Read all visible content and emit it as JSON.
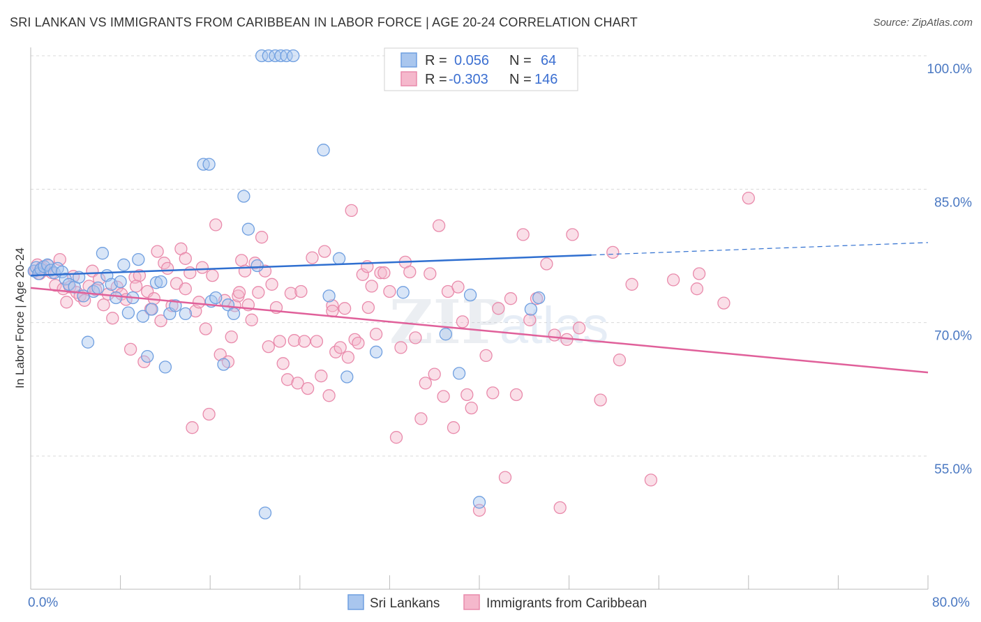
{
  "title": "SRI LANKAN VS IMMIGRANTS FROM CARIBBEAN IN LABOR FORCE | AGE 20-24 CORRELATION CHART",
  "source": "Source: ZipAtlas.com",
  "watermark": {
    "zip": "ZIP",
    "atlas": "atlas"
  },
  "colors": {
    "blue_fill": "#a9c6ee",
    "blue_stroke": "#6f9fe0",
    "blue_line": "#2f6fd0",
    "pink_fill": "#f5b8cc",
    "pink_stroke": "#e98aab",
    "pink_line": "#e0609a",
    "tick_label": "#4a78c2",
    "grid": "#d9d9d9"
  },
  "legend": {
    "rows": [
      {
        "r_label": "R =",
        "r_value": "0.056",
        "n_label": "N =",
        "n_value": "64"
      },
      {
        "r_label": "R =",
        "r_value": "-0.303",
        "n_label": "N =",
        "n_value": "146"
      }
    ]
  },
  "chart_data": {
    "type": "scatter",
    "title": "SRI LANKAN VS IMMIGRANTS FROM CARIBBEAN IN LABOR FORCE | AGE 20-24 CORRELATION CHART",
    "xlabel": "",
    "ylabel": "In Labor Force | Age 20-24",
    "xlim": [
      0.0,
      80.0
    ],
    "ylim": [
      40.0,
      101.0
    ],
    "x_tick_labels": [
      "0.0%",
      "80.0%"
    ],
    "y_ticks": [
      55.0,
      70.0,
      85.0,
      100.0
    ],
    "y_tick_labels": [
      "55.0%",
      "70.0%",
      "85.0%",
      "100.0%"
    ],
    "grid": "horizontal dashed",
    "legend_position": "top-center",
    "series": [
      {
        "name": "Sri Lankans",
        "r": 0.056,
        "n": 64,
        "trend": {
          "x0": 0.0,
          "y0": 75.3,
          "x1": 50.0,
          "y1": 77.6,
          "dashed_to_x": 80.0,
          "dashed_to_y": 79.0
        },
        "points": [
          [
            0.3,
            75.8
          ],
          [
            0.5,
            76.2
          ],
          [
            0.7,
            75.5
          ],
          [
            0.9,
            76.0
          ],
          [
            1.2,
            76.3
          ],
          [
            1.5,
            76.5
          ],
          [
            1.8,
            75.9
          ],
          [
            2.1,
            75.6
          ],
          [
            2.4,
            76.1
          ],
          [
            2.8,
            75.7
          ],
          [
            3.1,
            74.9
          ],
          [
            3.4,
            74.3
          ],
          [
            3.9,
            74.0
          ],
          [
            4.3,
            75.1
          ],
          [
            4.7,
            73.0
          ],
          [
            5.1,
            67.8
          ],
          [
            5.6,
            73.5
          ],
          [
            6.0,
            73.9
          ],
          [
            6.4,
            77.8
          ],
          [
            6.8,
            75.3
          ],
          [
            7.2,
            74.3
          ],
          [
            7.6,
            72.8
          ],
          [
            8.0,
            74.6
          ],
          [
            8.3,
            76.5
          ],
          [
            8.7,
            71.1
          ],
          [
            9.1,
            72.8
          ],
          [
            9.6,
            77.1
          ],
          [
            10.0,
            70.7
          ],
          [
            10.4,
            66.2
          ],
          [
            10.8,
            71.5
          ],
          [
            11.2,
            74.5
          ],
          [
            11.6,
            74.6
          ],
          [
            12.0,
            65.0
          ],
          [
            12.4,
            71.0
          ],
          [
            12.9,
            71.9
          ],
          [
            13.8,
            71.0
          ],
          [
            15.4,
            87.8
          ],
          [
            15.9,
            87.8
          ],
          [
            16.1,
            72.4
          ],
          [
            16.5,
            72.8
          ],
          [
            17.2,
            65.3
          ],
          [
            17.6,
            72.0
          ],
          [
            18.1,
            71.0
          ],
          [
            19.0,
            84.2
          ],
          [
            19.4,
            80.5
          ],
          [
            20.2,
            76.4
          ],
          [
            20.6,
            100.0
          ],
          [
            21.2,
            100.0
          ],
          [
            21.8,
            100.0
          ],
          [
            22.3,
            100.0
          ],
          [
            22.8,
            100.0
          ],
          [
            23.4,
            100.0
          ],
          [
            26.1,
            89.4
          ],
          [
            26.6,
            73.0
          ],
          [
            27.5,
            77.2
          ],
          [
            28.2,
            63.9
          ],
          [
            30.8,
            66.7
          ],
          [
            33.2,
            73.4
          ],
          [
            37.0,
            68.7
          ],
          [
            38.2,
            64.3
          ],
          [
            39.2,
            73.1
          ],
          [
            40.0,
            49.8
          ],
          [
            44.6,
            71.5
          ],
          [
            45.3,
            72.8
          ],
          [
            20.9,
            48.6
          ]
        ]
      },
      {
        "name": "Immigrants from Caribbean",
        "r": -0.303,
        "n": 146,
        "trend": {
          "x0": 0.0,
          "y0": 73.9,
          "x1": 80.0,
          "y1": 64.4
        },
        "points": [
          [
            0.4,
            75.8
          ],
          [
            0.6,
            76.5
          ],
          [
            0.8,
            75.5
          ],
          [
            1.0,
            76.2
          ],
          [
            1.3,
            75.9
          ],
          [
            1.6,
            76.4
          ],
          [
            1.9,
            75.6
          ],
          [
            2.2,
            74.2
          ],
          [
            2.6,
            77.1
          ],
          [
            2.9,
            73.8
          ],
          [
            3.2,
            72.3
          ],
          [
            3.5,
            74.0
          ],
          [
            3.8,
            75.2
          ],
          [
            4.1,
            73.4
          ],
          [
            4.4,
            73.0
          ],
          [
            4.8,
            72.5
          ],
          [
            5.2,
            74.1
          ],
          [
            5.5,
            75.8
          ],
          [
            5.8,
            73.7
          ],
          [
            6.1,
            74.9
          ],
          [
            6.5,
            72.0
          ],
          [
            6.9,
            73.2
          ],
          [
            7.3,
            70.5
          ],
          [
            7.7,
            74.0
          ],
          [
            8.1,
            73.2
          ],
          [
            8.5,
            72.6
          ],
          [
            8.9,
            67.0
          ],
          [
            9.3,
            75.1
          ],
          [
            9.7,
            75.3
          ],
          [
            10.1,
            65.6
          ],
          [
            10.4,
            73.5
          ],
          [
            10.7,
            71.5
          ],
          [
            11.0,
            72.7
          ],
          [
            11.3,
            78.0
          ],
          [
            11.6,
            70.2
          ],
          [
            11.9,
            76.7
          ],
          [
            12.2,
            76.1
          ],
          [
            12.6,
            71.9
          ],
          [
            13.0,
            74.4
          ],
          [
            13.4,
            78.3
          ],
          [
            13.8,
            73.8
          ],
          [
            14.2,
            75.6
          ],
          [
            14.4,
            58.2
          ],
          [
            14.7,
            71.3
          ],
          [
            15.0,
            72.3
          ],
          [
            15.3,
            76.2
          ],
          [
            15.6,
            69.3
          ],
          [
            15.9,
            59.7
          ],
          [
            16.2,
            75.3
          ],
          [
            16.5,
            81.0
          ],
          [
            16.9,
            66.4
          ],
          [
            17.3,
            72.5
          ],
          [
            17.6,
            65.6
          ],
          [
            17.9,
            68.4
          ],
          [
            18.2,
            71.9
          ],
          [
            18.5,
            73.0
          ],
          [
            18.8,
            77.0
          ],
          [
            19.1,
            75.8
          ],
          [
            19.4,
            72.0
          ],
          [
            19.7,
            70.3
          ],
          [
            20.0,
            76.7
          ],
          [
            20.3,
            73.4
          ],
          [
            20.6,
            79.6
          ],
          [
            20.9,
            75.8
          ],
          [
            21.2,
            67.3
          ],
          [
            21.5,
            74.3
          ],
          [
            21.9,
            71.7
          ],
          [
            22.2,
            67.9
          ],
          [
            22.5,
            65.4
          ],
          [
            22.9,
            63.6
          ],
          [
            23.2,
            73.3
          ],
          [
            23.5,
            68.0
          ],
          [
            23.8,
            63.2
          ],
          [
            24.1,
            73.5
          ],
          [
            24.4,
            67.9
          ],
          [
            24.7,
            62.6
          ],
          [
            25.1,
            77.3
          ],
          [
            25.5,
            67.9
          ],
          [
            25.9,
            64.0
          ],
          [
            26.2,
            78.0
          ],
          [
            26.6,
            61.8
          ],
          [
            26.9,
            71.9
          ],
          [
            27.2,
            66.7
          ],
          [
            27.6,
            67.2
          ],
          [
            28.0,
            71.6
          ],
          [
            28.3,
            66.1
          ],
          [
            28.6,
            82.6
          ],
          [
            28.9,
            68.1
          ],
          [
            29.2,
            67.7
          ],
          [
            29.6,
            75.4
          ],
          [
            30.0,
            76.3
          ],
          [
            30.4,
            74.1
          ],
          [
            30.8,
            68.7
          ],
          [
            31.2,
            75.6
          ],
          [
            31.5,
            75.6
          ],
          [
            32.0,
            73.5
          ],
          [
            32.6,
            57.1
          ],
          [
            33.0,
            67.2
          ],
          [
            33.4,
            76.8
          ],
          [
            33.8,
            75.7
          ],
          [
            34.3,
            68.3
          ],
          [
            34.8,
            59.2
          ],
          [
            35.2,
            63.2
          ],
          [
            35.6,
            75.5
          ],
          [
            36.0,
            64.2
          ],
          [
            36.4,
            80.9
          ],
          [
            36.8,
            61.7
          ],
          [
            37.2,
            73.5
          ],
          [
            37.7,
            58.2
          ],
          [
            38.1,
            74.0
          ],
          [
            38.5,
            70.1
          ],
          [
            38.9,
            61.9
          ],
          [
            39.3,
            60.4
          ],
          [
            40.0,
            48.9
          ],
          [
            40.6,
            66.3
          ],
          [
            41.2,
            62.1
          ],
          [
            41.7,
            71.6
          ],
          [
            42.3,
            52.6
          ],
          [
            42.8,
            72.7
          ],
          [
            43.3,
            61.9
          ],
          [
            43.9,
            79.9
          ],
          [
            44.5,
            70.3
          ],
          [
            45.1,
            72.7
          ],
          [
            46.0,
            76.6
          ],
          [
            46.7,
            68.6
          ],
          [
            47.2,
            49.2
          ],
          [
            47.8,
            68.1
          ],
          [
            48.3,
            79.9
          ],
          [
            48.9,
            69.4
          ],
          [
            50.8,
            61.3
          ],
          [
            51.9,
            77.9
          ],
          [
            52.5,
            65.8
          ],
          [
            53.6,
            74.3
          ],
          [
            55.3,
            52.3
          ],
          [
            57.3,
            74.8
          ],
          [
            59.4,
            73.8
          ],
          [
            59.6,
            75.5
          ],
          [
            61.8,
            72.2
          ],
          [
            64.0,
            84.0
          ],
          [
            13.8,
            77.2
          ],
          [
            9.4,
            74.1
          ],
          [
            18.6,
            73.4
          ],
          [
            26.9,
            71.3
          ],
          [
            30.1,
            71.7
          ]
        ]
      }
    ]
  },
  "bottom_legend": [
    {
      "label": "Sri Lankans"
    },
    {
      "label": "Immigrants from Caribbean"
    }
  ]
}
